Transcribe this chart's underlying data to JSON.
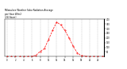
{
  "title": "Milwaukee Weather Solar Radiation Average\nper Hour W/m2\n(24 Hours)",
  "hours": [
    0,
    1,
    2,
    3,
    4,
    5,
    6,
    7,
    8,
    9,
    10,
    11,
    12,
    13,
    14,
    15,
    16,
    17,
    18,
    19,
    20,
    21,
    22,
    23
  ],
  "values": [
    0,
    0,
    0,
    0,
    0,
    0,
    2,
    15,
    55,
    85,
    180,
    280,
    370,
    340,
    280,
    200,
    110,
    40,
    8,
    2,
    0,
    0,
    0,
    0
  ],
  "line_color": "#ff0000",
  "bg_color": "#ffffff",
  "grid_color": "#999999",
  "ylim": [
    0,
    400
  ],
  "xlim": [
    -0.5,
    23.5
  ],
  "ytick_values": [
    50,
    100,
    150,
    200,
    250,
    300,
    350,
    400
  ],
  "ytick_labels": [
    "50",
    "100",
    "150",
    "200",
    "250",
    "300",
    "350",
    "400"
  ],
  "xtick_values": [
    0,
    2,
    4,
    6,
    8,
    10,
    12,
    14,
    16,
    18,
    20,
    22
  ],
  "xtick_labels": [
    "0",
    "2",
    "4",
    "6",
    "8",
    "10",
    "12",
    "14",
    "16",
    "18",
    "20",
    "22"
  ]
}
